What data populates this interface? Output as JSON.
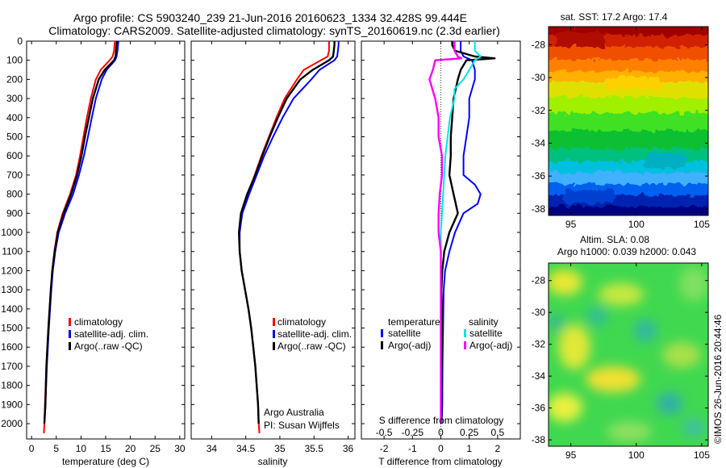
{
  "header": {
    "line1": "Argo profile: CS 5903240_239 21-Jun-2016 20160623_1334 32.428S 99.444E",
    "line2": "Climatology: CARS2009. Satellite-adjusted climatology: synTS_20160619.nc (2.3d earlier)"
  },
  "credit": "©IMOS 26-Jun-2016 20:44:46",
  "colors": {
    "climatology": "#ff0000",
    "satellite": "#0000ff",
    "argo": "#000000",
    "salinity_satellite": "#00e5e5",
    "salinity_argo": "#ff00ff"
  },
  "chart_data": [
    {
      "type": "line",
      "id": "temperature",
      "xlabel": "temperature (deg C)",
      "ylabel": "",
      "xlim": [
        -1,
        31
      ],
      "ylim": [
        2080,
        0
      ],
      "xticks": [
        0,
        5,
        10,
        15,
        20,
        25,
        30
      ],
      "yticks": [
        0,
        100,
        200,
        300,
        400,
        500,
        600,
        700,
        800,
        900,
        1000,
        1100,
        1200,
        1300,
        1400,
        1500,
        1600,
        1700,
        1800,
        1900,
        2000
      ],
      "legend": [
        "climatology",
        "satellite-adj. clim.",
        "Argo(..raw -QC)"
      ],
      "legend_placement": "lower-right",
      "series": [
        {
          "name": "climatology",
          "depth": [
            0,
            20,
            50,
            80,
            100,
            150,
            200,
            300,
            400,
            500,
            600,
            700,
            800,
            900,
            1000,
            1100,
            1200,
            1300,
            1500,
            1700,
            1900,
            2000,
            2050
          ],
          "values": [
            16.9,
            16.8,
            16.7,
            16.4,
            15.8,
            14.0,
            13.0,
            12.0,
            11.2,
            10.5,
            9.8,
            9.0,
            7.8,
            6.3,
            5.2,
            4.6,
            4.2,
            3.9,
            3.4,
            3.0,
            2.7,
            2.6,
            2.5
          ]
        },
        {
          "name": "satellite-adj. clim.",
          "depth": [
            0,
            20,
            50,
            80,
            100,
            150,
            200,
            300,
            400,
            500,
            600,
            700,
            800,
            900,
            1000,
            1100,
            1200,
            1300,
            1500,
            1700,
            1900,
            2000
          ],
          "values": [
            17.6,
            17.5,
            17.4,
            17.2,
            16.9,
            15.2,
            14.2,
            13.0,
            12.2,
            11.4,
            10.6,
            9.6,
            8.4,
            6.8,
            5.5,
            4.8,
            4.3,
            4.0,
            3.5,
            3.1,
            2.8,
            2.6
          ]
        },
        {
          "name": "Argo(..raw -QC)",
          "depth": [
            0,
            20,
            50,
            80,
            100,
            150,
            200,
            300,
            400,
            500,
            600,
            700,
            800,
            900,
            1000,
            1100,
            1200,
            1300,
            1500,
            1700,
            1900,
            2000
          ],
          "values": [
            17.3,
            17.2,
            17.1,
            17.0,
            16.7,
            14.8,
            13.6,
            12.4,
            11.6,
            10.8,
            10.1,
            9.2,
            8.0,
            6.5,
            5.3,
            4.7,
            4.2,
            3.9,
            3.4,
            3.0,
            2.8,
            2.6
          ]
        }
      ]
    },
    {
      "type": "line",
      "id": "salinity",
      "xlabel": "salinity",
      "xlim": [
        33.7,
        36.1
      ],
      "ylim": [
        2080,
        0
      ],
      "xticks": [
        34,
        34.5,
        35,
        35.5,
        36
      ],
      "legend": [
        "climatology",
        "satellite-adj. clim.",
        "Argo(..raw -QC)"
      ],
      "legend_placement": "lower-right",
      "annotation": [
        "Argo Australia",
        "PI: Susan Wijffels"
      ],
      "series": [
        {
          "name": "climatology",
          "depth": [
            0,
            20,
            50,
            80,
            100,
            150,
            200,
            300,
            400,
            500,
            600,
            700,
            800,
            900,
            1000,
            1100,
            1200,
            1300,
            1400,
            1500,
            1600,
            1700,
            1800,
            1900,
            2000,
            2050
          ],
          "values": [
            35.72,
            35.72,
            35.72,
            35.7,
            35.6,
            35.35,
            35.25,
            35.07,
            34.95,
            34.84,
            34.73,
            34.63,
            34.53,
            34.44,
            34.41,
            34.41,
            34.44,
            34.49,
            34.54,
            34.58,
            34.61,
            34.64,
            34.66,
            34.68,
            34.69,
            34.7
          ]
        },
        {
          "name": "satellite-adj. clim.",
          "depth": [
            0,
            20,
            50,
            80,
            100,
            150,
            200,
            300,
            400,
            500,
            600,
            700,
            800,
            900,
            1000,
            1100,
            1200,
            1300,
            1400,
            1500,
            1600,
            1700,
            1800,
            1900,
            2000
          ],
          "values": [
            35.86,
            35.86,
            35.85,
            35.84,
            35.8,
            35.58,
            35.46,
            35.2,
            35.04,
            34.9,
            34.77,
            34.66,
            34.55,
            34.45,
            34.41,
            34.41,
            34.44,
            34.49,
            34.54,
            34.58,
            34.61,
            34.64,
            34.66,
            34.68,
            34.69
          ]
        },
        {
          "name": "Argo(..raw -QC)",
          "depth": [
            0,
            20,
            50,
            80,
            100,
            150,
            200,
            300,
            400,
            500,
            600,
            700,
            800,
            900,
            1000,
            1100,
            1200,
            1300,
            1400,
            1500,
            1600,
            1700,
            1800,
            1900,
            2000
          ],
          "values": [
            35.8,
            35.8,
            35.79,
            35.78,
            35.72,
            35.48,
            35.3,
            35.1,
            34.97,
            34.85,
            34.74,
            34.64,
            34.52,
            34.43,
            34.4,
            34.41,
            34.44,
            34.49,
            34.54,
            34.58,
            34.61,
            34.64,
            34.66,
            34.68,
            34.69
          ]
        }
      ]
    },
    {
      "type": "line",
      "id": "difference",
      "xlabel": "T difference from climatology",
      "xlabel_top": "S difference from climatology",
      "xlim": [
        -2.8,
        2.8
      ],
      "ylim": [
        2080,
        0
      ],
      "xticks": [
        -2,
        -1,
        0,
        1,
        2
      ],
      "xticks_s": [
        -0.5,
        -0.25,
        0,
        0.25,
        0.5
      ],
      "xticks_s_labels": [
        "-0.5",
        "-0.25",
        "0",
        "0.25",
        "0.5"
      ],
      "legend_headers": [
        "temperature",
        "salinity"
      ],
      "legend": [
        "satellite",
        "Argo(-adj)",
        "satellite",
        "Argo(-adj)"
      ],
      "legend_placement": "lower-center",
      "series": [
        {
          "name": "temperature satellite",
          "depth": [
            0,
            20,
            50,
            80,
            100,
            150,
            200,
            300,
            400,
            500,
            600,
            700,
            750,
            800,
            850,
            900,
            1000,
            1100,
            1200,
            1300,
            1500,
            1700,
            1900,
            2000
          ],
          "values": [
            0.7,
            0.7,
            0.7,
            0.8,
            1.1,
            1.2,
            1.2,
            1.0,
            1.0,
            0.9,
            0.8,
            0.8,
            1.2,
            1.4,
            1.3,
            0.8,
            0.5,
            0.3,
            0.15,
            0.1,
            0.08,
            0.06,
            0.05,
            0.03
          ]
        },
        {
          "name": "temperature Argo(-adj)",
          "depth": [
            0,
            20,
            50,
            80,
            90,
            100,
            150,
            200,
            300,
            400,
            500,
            600,
            700,
            800,
            900,
            1000,
            1100,
            1200,
            1300,
            1500,
            1700,
            1900,
            2000
          ],
          "values": [
            0.4,
            0.4,
            0.5,
            1.2,
            1.9,
            0.9,
            0.7,
            0.6,
            0.45,
            0.4,
            0.35,
            0.35,
            0.3,
            0.45,
            0.6,
            0.3,
            0.12,
            0.05,
            0.02,
            0.05,
            0.03,
            0.02,
            0.02
          ]
        },
        {
          "name": "salinity satellite",
          "depth": [
            0,
            20,
            50,
            80,
            100,
            150,
            200,
            250,
            300,
            400,
            500,
            600,
            700,
            800,
            900,
            1000,
            1100,
            1200,
            1300,
            1500,
            1700,
            1900,
            2000
          ],
          "values": [
            0.3,
            0.3,
            0.3,
            0.35,
            0.3,
            0.25,
            0.2,
            0.12,
            0.12,
            0.08,
            0.06,
            0.04,
            0.03,
            0.02,
            0.01,
            0.0,
            0.0,
            0.0,
            0.0,
            0.0,
            0.0,
            0.0,
            0.0
          ]
        },
        {
          "name": "salinity Argo(-adj)",
          "depth": [
            0,
            20,
            50,
            80,
            90,
            100,
            150,
            200,
            300,
            400,
            500,
            600,
            700,
            800,
            900,
            1000,
            1100,
            1200,
            1300,
            1500,
            1700,
            1900,
            2000
          ],
          "values": [
            0.12,
            0.12,
            0.12,
            0.15,
            0.18,
            -0.05,
            -0.07,
            -0.1,
            -0.05,
            -0.02,
            -0.02,
            0.01,
            0.01,
            -0.01,
            -0.02,
            -0.02,
            0.0,
            0.0,
            0.0,
            0.0,
            0.0,
            0.0,
            0.0
          ]
        }
      ]
    },
    {
      "type": "heatmap",
      "id": "sst-map",
      "title": "sat. SST: 17.2  Argo: 17.4",
      "xlim": [
        93.3,
        105.5
      ],
      "ylim": [
        -38.4,
        -26.9
      ],
      "xticks": [
        95,
        100,
        105
      ],
      "yticks": [
        -28,
        -30,
        -32,
        -34,
        -36,
        -38
      ],
      "yticklabels": [
        "-28",
        "-30",
        "-32",
        "-34",
        "-36",
        "-38"
      ],
      "colormap": "jet"
    },
    {
      "type": "heatmap",
      "id": "sla-map",
      "title": "Altim. SLA: 0.08",
      "subtitle": "Argo h1000: 0.039 h2000: 0.043",
      "xlim": [
        93.3,
        105.5
      ],
      "ylim": [
        -38.4,
        -26.9
      ],
      "xticks": [
        95,
        100,
        105
      ],
      "yticks": [
        -28,
        -30,
        -32,
        -34,
        -36,
        -38
      ],
      "yticklabels": [
        "-28",
        "-30",
        "-32",
        "-34",
        "-36",
        "-38"
      ],
      "colormap": "jet"
    }
  ]
}
